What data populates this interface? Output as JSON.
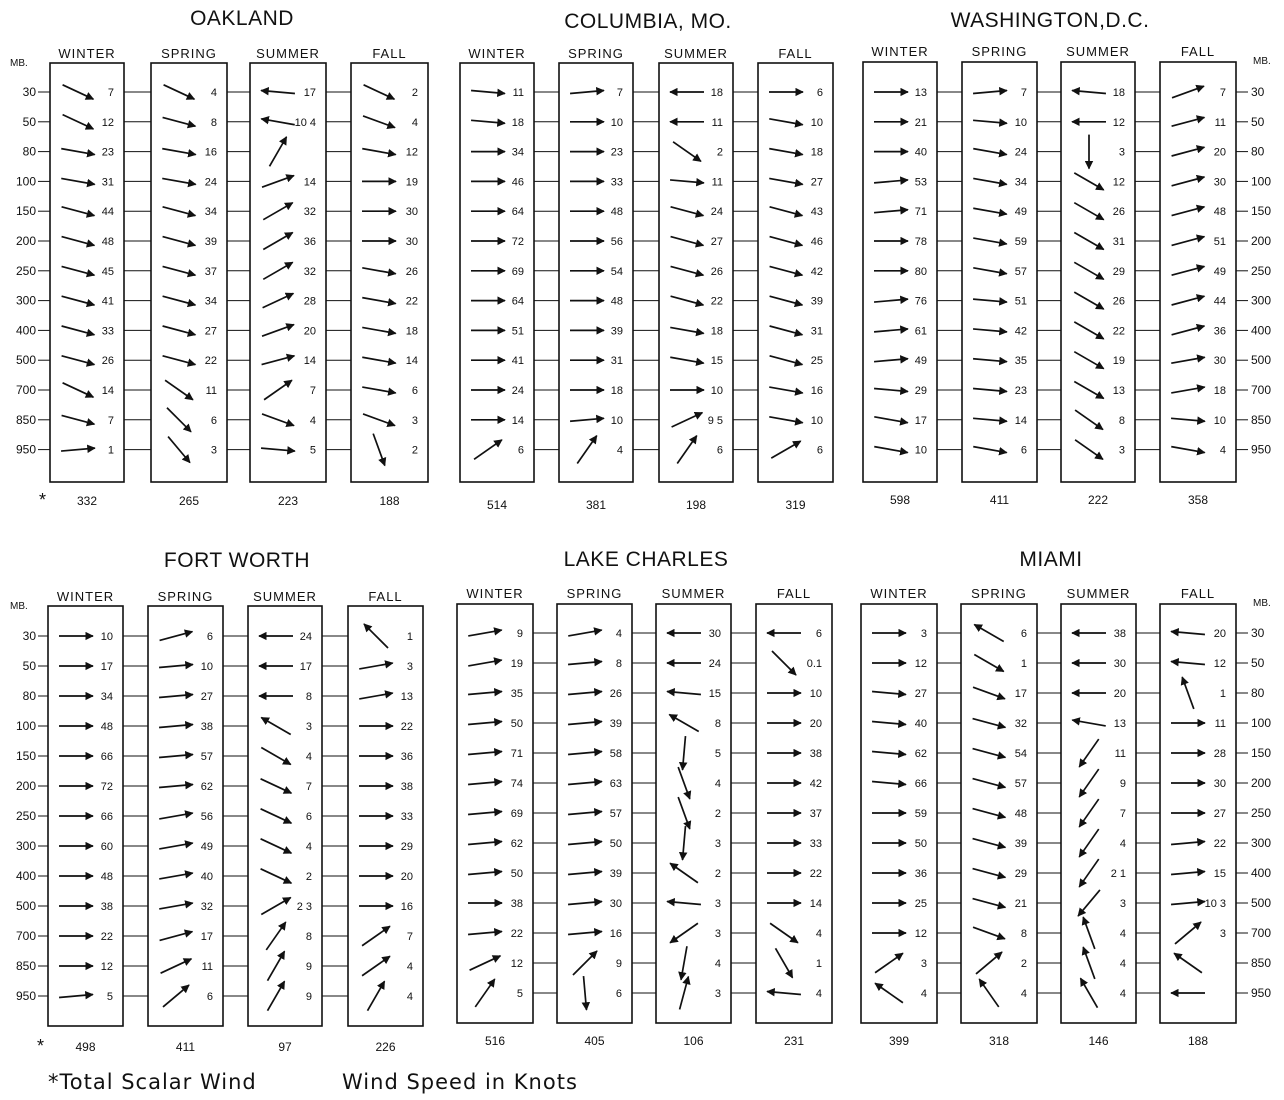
{
  "levels": [
    "30",
    "50",
    "80",
    "100",
    "150",
    "200",
    "250",
    "300",
    "400",
    "500",
    "700",
    "850",
    "950"
  ],
  "mb_label": "MB.",
  "seasons": [
    "WINTER",
    "SPRING",
    "SUMMER",
    "FALL"
  ],
  "footnote": {
    "marker": "*",
    "scalar": "Total Scalar Wind",
    "speed": "Wind Speed in Knots"
  },
  "stations": [
    {
      "name": "OAKLAND",
      "speeds": [
        [
          "7",
          "12",
          "23",
          "31",
          "44",
          "48",
          "45",
          "41",
          "33",
          "26",
          "14",
          "7",
          "1"
        ],
        [
          "4",
          "8",
          "16",
          "24",
          "34",
          "39",
          "37",
          "34",
          "27",
          "22",
          "11",
          "6",
          "3"
        ],
        [
          "17",
          "10 4",
          "",
          "14",
          "32",
          "36",
          "32",
          "28",
          "20",
          "14",
          "7",
          "4",
          "5"
        ],
        [
          "2",
          "4",
          "12",
          "19",
          "30",
          "30",
          "26",
          "22",
          "18",
          "14",
          "6",
          "3",
          "2"
        ]
      ],
      "dirs": [
        [
          -25,
          -25,
          -10,
          -10,
          -15,
          -15,
          -15,
          -15,
          -15,
          -15,
          -25,
          -15,
          5
        ],
        [
          -25,
          -15,
          -10,
          -10,
          -15,
          -15,
          -15,
          -15,
          -15,
          -15,
          -35,
          -45,
          -50
        ],
        [
          175,
          170,
          60,
          20,
          30,
          30,
          30,
          25,
          20,
          15,
          35,
          -20,
          -5
        ],
        [
          -25,
          -20,
          -10,
          0,
          0,
          0,
          -10,
          -10,
          -10,
          -10,
          -10,
          -20,
          -70
        ]
      ],
      "totals": [
        "332",
        "265",
        "223",
        "188"
      ]
    },
    {
      "name": "COLUMBIA, MO.",
      "speeds": [
        [
          "11",
          "18",
          "34",
          "46",
          "64",
          "72",
          "69",
          "64",
          "51",
          "41",
          "24",
          "14",
          "6"
        ],
        [
          "7",
          "10",
          "23",
          "33",
          "48",
          "56",
          "54",
          "48",
          "39",
          "31",
          "18",
          "10",
          "4"
        ],
        [
          "18",
          "11",
          "2",
          "11",
          "24",
          "27",
          "26",
          "22",
          "18",
          "15",
          "10",
          "9 5",
          "6"
        ],
        [
          "6",
          "10",
          "18",
          "27",
          "43",
          "46",
          "42",
          "39",
          "31",
          "25",
          "16",
          "10",
          "6"
        ]
      ],
      "dirs": [
        [
          -5,
          -5,
          0,
          0,
          0,
          0,
          0,
          0,
          0,
          0,
          0,
          0,
          35
        ],
        [
          5,
          0,
          0,
          0,
          0,
          0,
          0,
          0,
          0,
          0,
          0,
          5,
          55
        ],
        [
          180,
          180,
          -35,
          -5,
          -15,
          -15,
          -15,
          -15,
          -10,
          -10,
          0,
          25,
          55
        ],
        [
          0,
          -10,
          -10,
          -10,
          -15,
          -15,
          -15,
          -15,
          -15,
          -15,
          -10,
          -10,
          30
        ]
      ],
      "totals": [
        "514",
        "381",
        "198",
        "319"
      ]
    },
    {
      "name": "WASHINGTON,D.C.",
      "speeds": [
        [
          "13",
          "21",
          "40",
          "53",
          "71",
          "78",
          "80",
          "76",
          "61",
          "49",
          "29",
          "17",
          "10"
        ],
        [
          "7",
          "10",
          "24",
          "34",
          "49",
          "59",
          "57",
          "51",
          "42",
          "35",
          "23",
          "14",
          "6"
        ],
        [
          "18",
          "12",
          "3",
          "12",
          "26",
          "31",
          "29",
          "26",
          "22",
          "19",
          "13",
          "8",
          "3"
        ],
        [
          "7",
          "11",
          "20",
          "30",
          "48",
          "51",
          "49",
          "44",
          "36",
          "30",
          "18",
          "10",
          "4"
        ]
      ],
      "dirs": [
        [
          0,
          0,
          0,
          5,
          5,
          0,
          0,
          5,
          5,
          5,
          -5,
          -10,
          -10
        ],
        [
          5,
          -5,
          -10,
          -10,
          -10,
          -10,
          -10,
          -5,
          -5,
          -5,
          -5,
          -5,
          -10
        ],
        [
          175,
          180,
          -90,
          -30,
          -30,
          -30,
          -30,
          -30,
          -30,
          -30,
          -30,
          -35,
          -35
        ],
        [
          20,
          15,
          15,
          15,
          15,
          15,
          15,
          15,
          15,
          10,
          10,
          -5,
          -10
        ]
      ],
      "totals": [
        "598",
        "411",
        "222",
        "358"
      ]
    },
    {
      "name": "FORT WORTH",
      "speeds": [
        [
          "10",
          "17",
          "34",
          "48",
          "66",
          "72",
          "66",
          "60",
          "48",
          "38",
          "22",
          "12",
          "5"
        ],
        [
          "6",
          "10",
          "27",
          "38",
          "57",
          "62",
          "56",
          "49",
          "40",
          "32",
          "17",
          "11",
          "6"
        ],
        [
          "24",
          "17",
          "8",
          "3",
          "4",
          "7",
          "6",
          "4",
          "2",
          "2 3",
          "8",
          "9",
          "9"
        ],
        [
          "1",
          "3",
          "13",
          "22",
          "36",
          "38",
          "33",
          "29",
          "20",
          "16",
          "7",
          "4",
          "4"
        ]
      ],
      "dirs": [
        [
          0,
          0,
          0,
          0,
          0,
          0,
          0,
          0,
          0,
          0,
          0,
          0,
          5
        ],
        [
          15,
          5,
          5,
          5,
          5,
          5,
          10,
          10,
          10,
          10,
          15,
          25,
          40
        ],
        [
          180,
          180,
          180,
          150,
          -30,
          -25,
          -25,
          -25,
          -25,
          30,
          55,
          60,
          60
        ],
        [
          135,
          10,
          10,
          0,
          0,
          0,
          0,
          0,
          0,
          0,
          35,
          35,
          60
        ]
      ],
      "totals": [
        "498",
        "411",
        "97",
        "226"
      ]
    },
    {
      "name": "LAKE CHARLES",
      "speeds": [
        [
          "9",
          "19",
          "35",
          "50",
          "71",
          "74",
          "69",
          "62",
          "50",
          "38",
          "22",
          "12",
          "5"
        ],
        [
          "4",
          "8",
          "26",
          "39",
          "58",
          "63",
          "57",
          "50",
          "39",
          "30",
          "16",
          "9",
          "6"
        ],
        [
          "30",
          "24",
          "15",
          "8",
          "5",
          "4",
          "2",
          "3",
          "2",
          "3",
          "3",
          "4",
          "3"
        ],
        [
          "6",
          "0.1",
          "10",
          "20",
          "38",
          "42",
          "37",
          "33",
          "22",
          "14",
          "4",
          "1",
          "4"
        ]
      ],
      "dirs": [
        [
          10,
          10,
          5,
          5,
          5,
          5,
          5,
          5,
          5,
          0,
          5,
          25,
          55
        ],
        [
          10,
          5,
          5,
          5,
          5,
          5,
          5,
          5,
          5,
          5,
          5,
          45,
          -85
        ],
        [
          180,
          180,
          175,
          150,
          -95,
          -70,
          -70,
          -95,
          145,
          175,
          -145,
          -100,
          75
        ],
        [
          180,
          -45,
          0,
          0,
          0,
          0,
          0,
          0,
          0,
          0,
          -35,
          -60,
          175
        ]
      ],
      "totals": [
        "516",
        "405",
        "106",
        "231"
      ]
    },
    {
      "name": "MIAMI",
      "speeds": [
        [
          "3",
          "12",
          "27",
          "40",
          "62",
          "66",
          "59",
          "50",
          "36",
          "25",
          "12",
          "3",
          "4"
        ],
        [
          "6",
          "1",
          "17",
          "32",
          "54",
          "57",
          "48",
          "39",
          "29",
          "21",
          "8",
          "2",
          "4"
        ],
        [
          "38",
          "30",
          "20",
          "13",
          "11",
          "9",
          "7",
          "4",
          "2 1",
          "3",
          "4",
          "4",
          "4"
        ],
        [
          "20",
          "12",
          "1",
          "11",
          "28",
          "30",
          "27",
          "22",
          "15",
          "10 3",
          "3",
          "",
          ""
        ]
      ],
      "dirs": [
        [
          0,
          0,
          -5,
          -5,
          -5,
          -5,
          0,
          0,
          0,
          0,
          0,
          35,
          145
        ],
        [
          150,
          -30,
          -20,
          -15,
          -15,
          -15,
          -15,
          -15,
          -15,
          -15,
          -20,
          40,
          125
        ],
        [
          180,
          180,
          180,
          170,
          -125,
          -125,
          -125,
          -125,
          -125,
          -130,
          110,
          110,
          120
        ],
        [
          175,
          175,
          110,
          0,
          0,
          0,
          0,
          5,
          5,
          5,
          40,
          145,
          180
        ]
      ],
      "totals": [
        "399",
        "318",
        "146",
        "188"
      ]
    }
  ]
}
